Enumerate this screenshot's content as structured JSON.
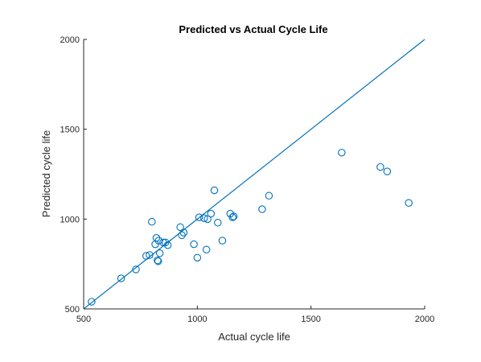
{
  "chart_data": {
    "type": "scatter",
    "title": "Predicted vs Actual Cycle Life",
    "xlabel": "Actual cycle life",
    "ylabel": "Predicted cycle life",
    "xlim": [
      500,
      2000
    ],
    "ylim": [
      500,
      2000
    ],
    "xticks": [
      500,
      1000,
      1500,
      2000
    ],
    "yticks": [
      500,
      1000,
      1500,
      2000
    ],
    "grid": false,
    "legend": "none",
    "marker_color": "#0072BD",
    "reference_line": {
      "from": [
        500,
        500
      ],
      "to": [
        2000,
        2000
      ]
    },
    "series": [
      {
        "x": [
          535,
          665,
          730,
          775,
          790,
          800,
          815,
          820,
          825,
          828,
          830,
          835,
          850,
          860,
          870,
          925,
          932,
          940,
          985,
          1000,
          1008,
          1030,
          1040,
          1045,
          1060,
          1075,
          1090,
          1110,
          1145,
          1155,
          1160,
          1285,
          1315,
          1635,
          1805,
          1835,
          1930
        ],
        "y": [
          540,
          670,
          720,
          795,
          800,
          985,
          860,
          895,
          770,
          765,
          880,
          810,
          870,
          870,
          855,
          955,
          910,
          925,
          860,
          785,
          1010,
          1005,
          830,
          1000,
          1030,
          1160,
          980,
          880,
          1030,
          1010,
          1015,
          1055,
          1130,
          1370,
          1290,
          1265,
          1090
        ]
      }
    ]
  }
}
